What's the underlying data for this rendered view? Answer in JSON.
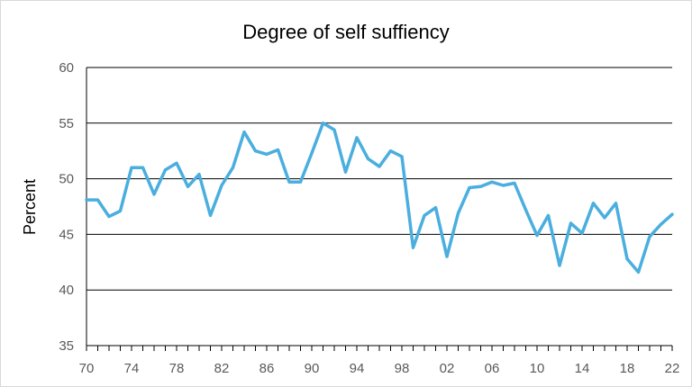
{
  "chart_data": {
    "type": "line",
    "title": "Degree of self suffiency",
    "xlabel": "",
    "ylabel": "Percent",
    "ylim": [
      35,
      60
    ],
    "yticks": [
      35,
      40,
      45,
      50,
      55,
      60
    ],
    "xlim": [
      1970,
      2022
    ],
    "xtick_labels": [
      "70",
      "74",
      "78",
      "82",
      "86",
      "90",
      "94",
      "98",
      "02",
      "06",
      "10",
      "14",
      "18",
      "22"
    ],
    "xtick_years": [
      1970,
      1974,
      1978,
      1982,
      1986,
      1990,
      1994,
      1998,
      2002,
      2006,
      2010,
      2014,
      2018,
      2022
    ],
    "grid": "horizontal",
    "legend": "none",
    "series": [
      {
        "color": "#4aaedf",
        "x": [
          1970,
          1971,
          1972,
          1973,
          1974,
          1975,
          1976,
          1977,
          1978,
          1979,
          1980,
          1981,
          1982,
          1983,
          1984,
          1985,
          1986,
          1987,
          1988,
          1989,
          1990,
          1991,
          1992,
          1993,
          1994,
          1995,
          1996,
          1997,
          1998,
          1999,
          2000,
          2001,
          2002,
          2003,
          2004,
          2005,
          2006,
          2007,
          2008,
          2009,
          2010,
          2011,
          2012,
          2013,
          2014,
          2015,
          2016,
          2017,
          2018,
          2019,
          2020,
          2021,
          2022
        ],
        "y": [
          48.1,
          48.1,
          46.6,
          47.1,
          51.0,
          51.0,
          48.6,
          50.8,
          51.4,
          49.3,
          50.4,
          46.7,
          49.4,
          51.0,
          54.2,
          52.5,
          52.2,
          52.6,
          49.7,
          49.7,
          52.3,
          55.0,
          54.4,
          50.6,
          53.7,
          51.8,
          51.1,
          52.5,
          52.0,
          43.8,
          46.7,
          47.4,
          43.0,
          46.9,
          49.2,
          49.3,
          49.7,
          49.4,
          49.6,
          47.2,
          44.9,
          46.7,
          42.2,
          46.0,
          45.1,
          47.8,
          46.5,
          47.8,
          42.8,
          41.6,
          44.8,
          45.9,
          46.8
        ]
      }
    ]
  }
}
